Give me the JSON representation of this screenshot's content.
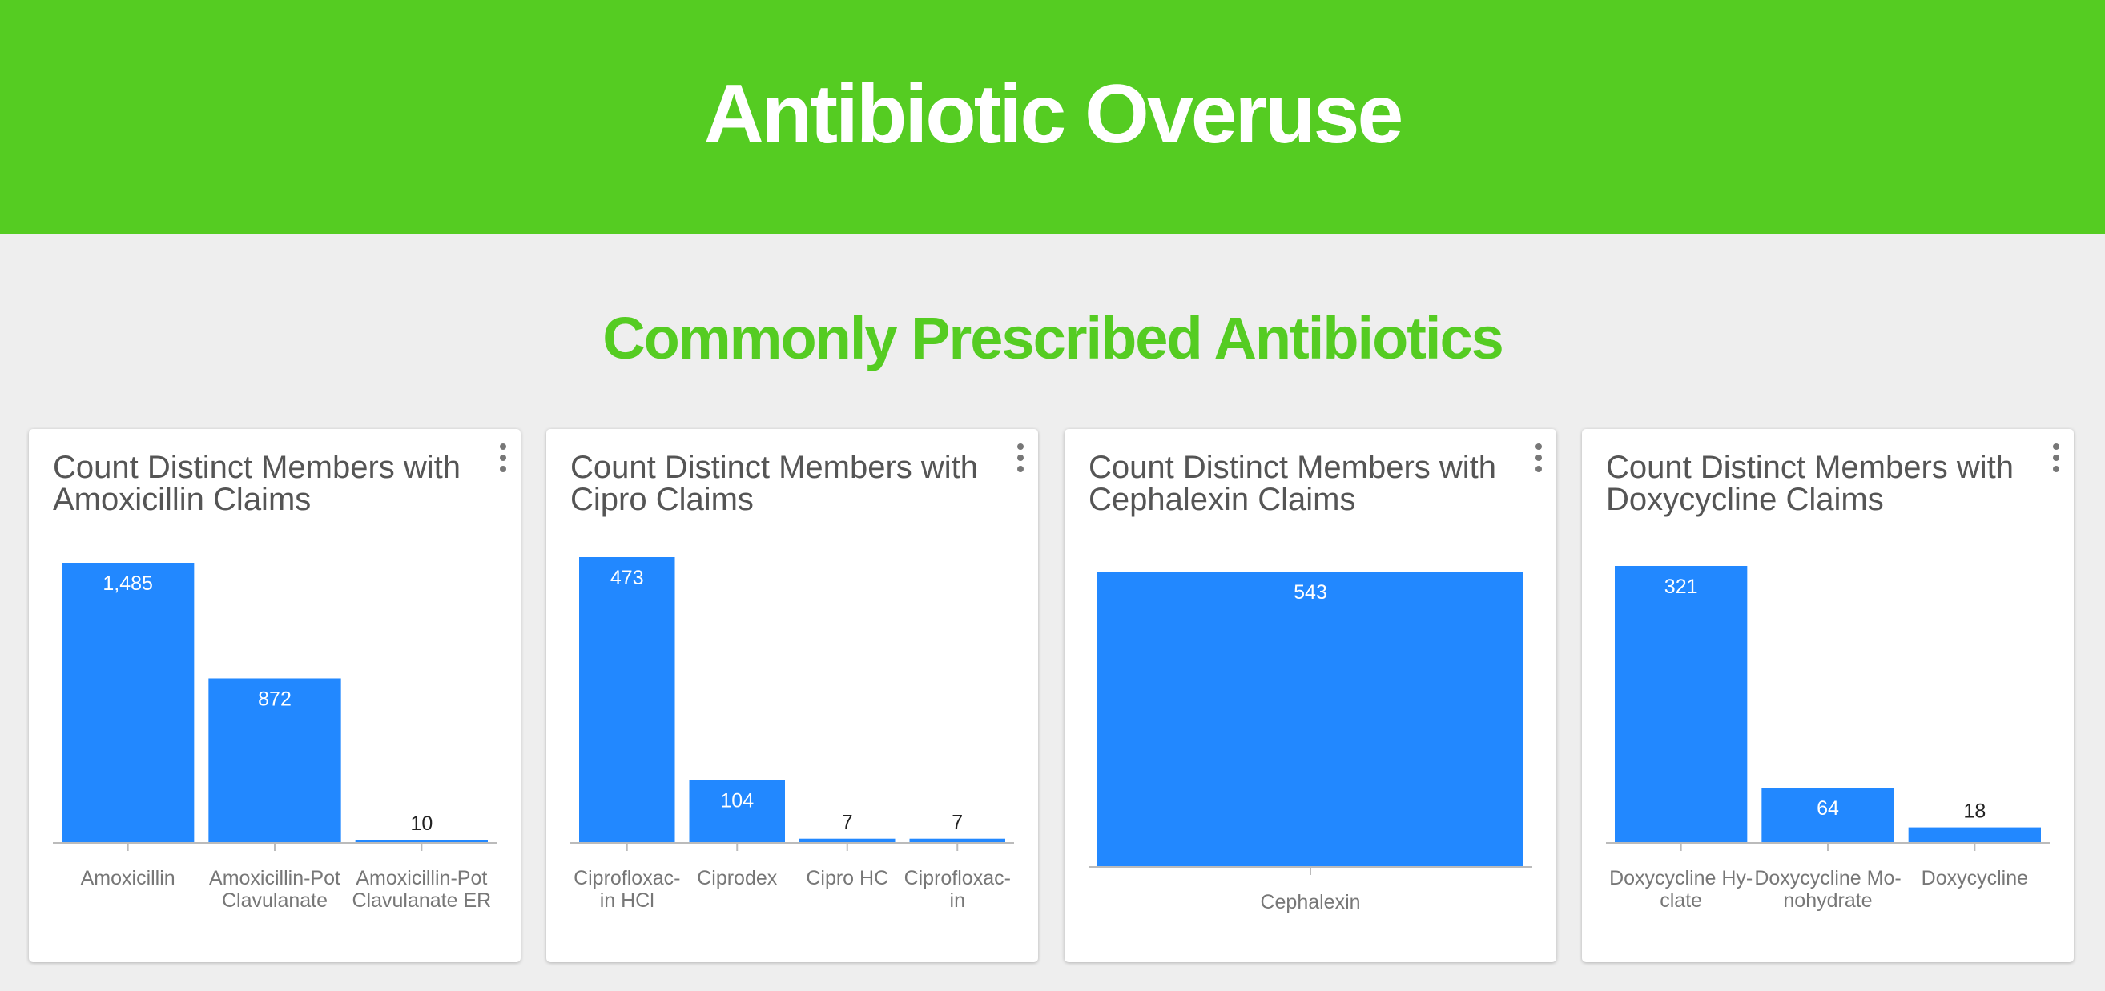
{
  "header": {
    "title": "Antibiotic Overuse",
    "bg_color": "#55cc22"
  },
  "section": {
    "title": "Commonly Prescribed Antibiotics",
    "color": "#55cc22"
  },
  "bar_color": "#2288ff",
  "chart_data": [
    {
      "type": "bar",
      "title": "Count Distinct Members with Amoxicillin Claims",
      "categories": [
        [
          "Amoxicillin"
        ],
        [
          "Amoxicillin-Pot",
          "Clavulanate"
        ],
        [
          "Amoxicillin-Pot",
          "Clavulanate ER"
        ]
      ],
      "values": [
        1485,
        872,
        10
      ],
      "value_labels": [
        "1,485",
        "872",
        "10"
      ],
      "ylim": [
        0,
        1485
      ]
    },
    {
      "type": "bar",
      "title": "Count Distinct Members with Cipro Claims",
      "categories": [
        [
          "Ciprofloxac-",
          "in HCl"
        ],
        [
          "Ciprodex"
        ],
        [
          "Cipro HC"
        ],
        [
          "Ciprofloxac-",
          "in"
        ]
      ],
      "values": [
        473,
        104,
        7,
        7
      ],
      "value_labels": [
        "473",
        "104",
        "7",
        "7"
      ],
      "ylim": [
        0,
        473
      ]
    },
    {
      "type": "bar",
      "title": "Count Distinct Members with Cephalexin Claims",
      "categories": [
        [
          "Cephalexin"
        ]
      ],
      "values": [
        543
      ],
      "value_labels": [
        "543"
      ],
      "ylim": [
        0,
        543
      ]
    },
    {
      "type": "bar",
      "title": "Count Distinct Members with Doxycycline Claims",
      "categories": [
        [
          "Doxycycline Hy-",
          "clate"
        ],
        [
          "Doxycycline Mo-",
          "nohydrate"
        ],
        [
          "Doxycycline"
        ]
      ],
      "values": [
        321,
        64,
        18
      ],
      "value_labels": [
        "321",
        "64",
        "18"
      ],
      "ylim": [
        0,
        321
      ]
    }
  ]
}
